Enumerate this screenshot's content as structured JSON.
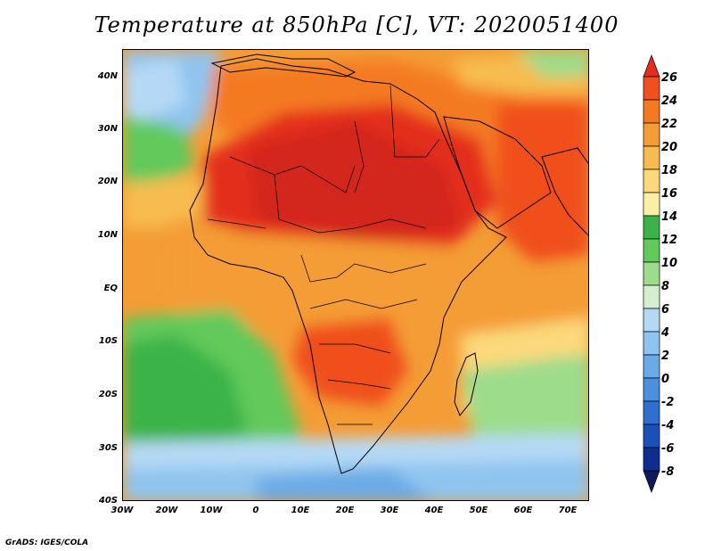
{
  "title": "Temperature at 850hPa [C], VT: 2020051400",
  "credit": "GrADS: IGES/COLA",
  "axes": {
    "lat_labels": [
      "40N",
      "30N",
      "20N",
      "10N",
      "EQ",
      "10S",
      "20S",
      "30S",
      "40S"
    ],
    "lon_labels": [
      "30W",
      "20W",
      "10W",
      "0",
      "10E",
      "20E",
      "30E",
      "40E",
      "50E",
      "60E",
      "70E"
    ]
  },
  "colorbar": {
    "labels": [
      "26",
      "24",
      "22",
      "20",
      "18",
      "16",
      "14",
      "12",
      "10",
      "8",
      "6",
      "4",
      "2",
      "0",
      "-2",
      "-4",
      "-6",
      "-8"
    ],
    "colors": [
      "#e42d1a",
      "#f0501e",
      "#f47a22",
      "#f49c35",
      "#f7bc50",
      "#fbd97c",
      "#fbefa8",
      "#3bb34a",
      "#62c95a",
      "#9ddc8b",
      "#d3efd0",
      "#b5d9f5",
      "#8fc4ef",
      "#6aaae7",
      "#4b8fdd",
      "#2f6fd0",
      "#1b4fb9",
      "#0f2d8f",
      "#0d1a60"
    ]
  },
  "map": {
    "region": "Africa",
    "variable": "Temperature at 850hPa",
    "units": "C",
    "colors": {
      "ocean_cold": "#8fc4ef",
      "ocean_cool": "#62c95a",
      "warm": "#f49c35",
      "hot": "#f0501e",
      "hottest": "#e42d1a"
    }
  }
}
